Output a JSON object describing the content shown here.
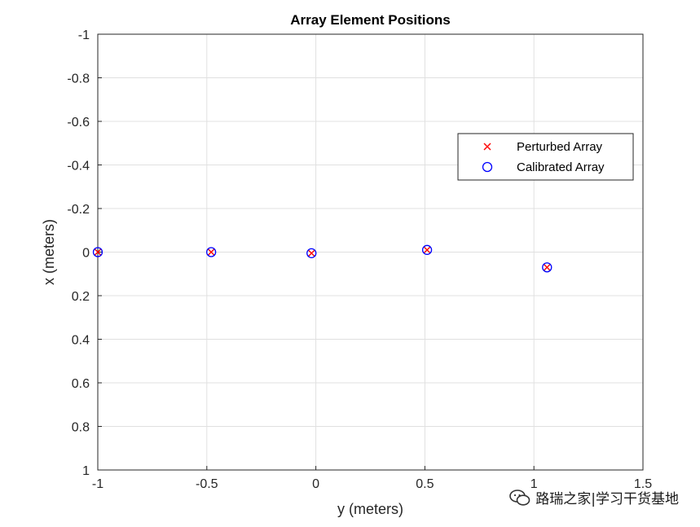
{
  "chart_data": {
    "type": "scatter",
    "title": "Array Element Positions",
    "xlabel": "y (meters)",
    "ylabel": "x (meters)",
    "xlim": [
      -1,
      1.5
    ],
    "ylim": [
      -1,
      1
    ],
    "y_reversed": true,
    "grid": true,
    "legend_position": "right",
    "x_ticks": [
      "-1",
      "-0.5",
      "0",
      "0.5",
      "1",
      "1.5"
    ],
    "y_ticks": [
      "-1",
      "-0.8",
      "-0.6",
      "-0.4",
      "-0.2",
      "0",
      "0.2",
      "0.4",
      "0.6",
      "0.8",
      "1"
    ],
    "series": [
      {
        "name": "Perturbed Array",
        "marker": "x",
        "color": "#ff0000",
        "points": [
          [
            -1.0,
            0.0
          ],
          [
            -0.48,
            0.0
          ],
          [
            -0.02,
            0.005
          ],
          [
            0.51,
            -0.01
          ],
          [
            1.06,
            0.07
          ]
        ]
      },
      {
        "name": "Calibrated Array",
        "marker": "o",
        "color": "#0000ff",
        "points": [
          [
            -1.0,
            0.0
          ],
          [
            -0.48,
            0.0
          ],
          [
            -0.02,
            0.005
          ],
          [
            0.51,
            -0.01
          ],
          [
            1.06,
            0.07
          ]
        ]
      }
    ]
  },
  "watermark": {
    "text": "路瑞之家|学习干货基地",
    "icon": "wechat-icon"
  }
}
